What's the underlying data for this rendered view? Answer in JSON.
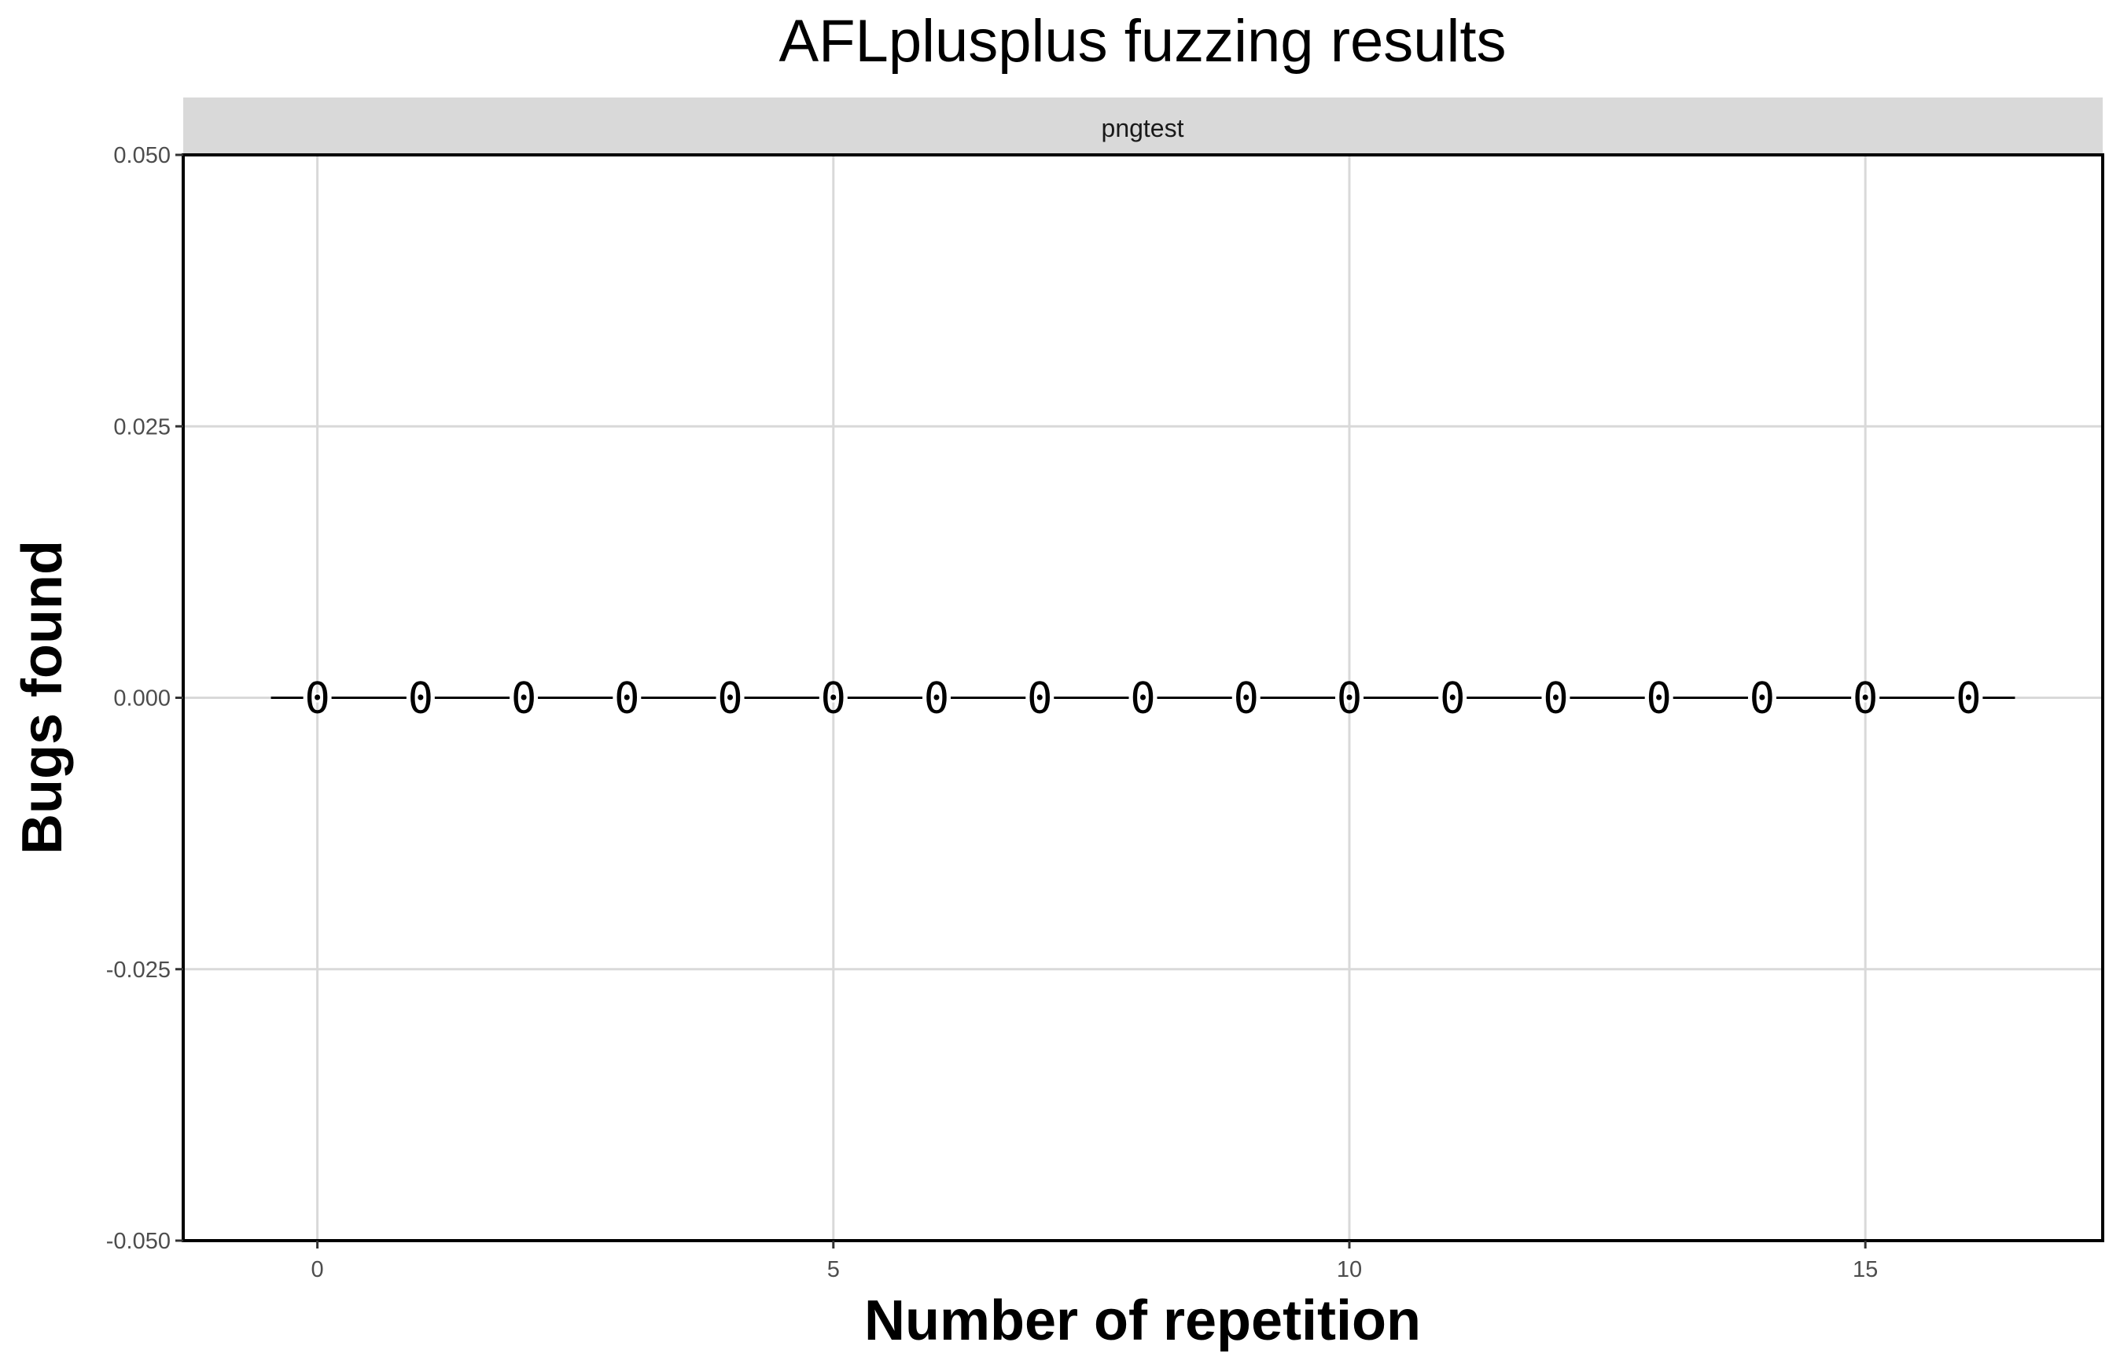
{
  "chart_data": {
    "type": "line",
    "title": "AFLplusplus fuzzing results",
    "facet": "pngtest",
    "xlabel": "Number of repetition",
    "ylabel": "Bugs found",
    "xlim": [
      -1.3,
      17.3
    ],
    "ylim": [
      -0.05,
      0.05
    ],
    "x_ticks": [
      0,
      5,
      10,
      15
    ],
    "y_ticks": [
      -0.05,
      -0.025,
      0,
      0.025,
      0.05
    ],
    "y_tick_labels": [
      "-0.050",
      "-0.025",
      "0.000",
      "0.025",
      "0.050"
    ],
    "grid": true,
    "segment": {
      "x_start": -0.45,
      "x_end": 16.45,
      "y": 0
    },
    "series": [
      {
        "x": [
          0,
          1,
          2,
          3,
          4,
          5,
          6,
          7,
          8,
          9,
          10,
          11,
          12,
          13,
          14,
          15,
          16
        ],
        "values": [
          0,
          0,
          0,
          0,
          0,
          0,
          0,
          0,
          0,
          0,
          0,
          0,
          0,
          0,
          0,
          0,
          0
        ],
        "labels": [
          "0",
          "0",
          "0",
          "0",
          "0",
          "0",
          "0",
          "0",
          "0",
          "0",
          "0",
          "0",
          "0",
          "0",
          "0",
          "0",
          "0"
        ]
      }
    ],
    "colors": {
      "line": "#000000",
      "grid": "#d9d9d9",
      "strip": "#d9d9d9",
      "panel_border": "#000000"
    }
  }
}
